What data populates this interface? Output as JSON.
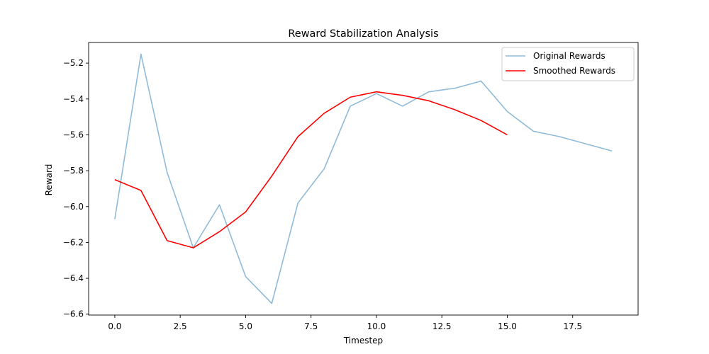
{
  "chart_data": {
    "type": "line",
    "title": "Reward Stabilization Analysis",
    "xlabel": "Timestep",
    "ylabel": "Reward",
    "xlim": [
      -1.0,
      20.0
    ],
    "ylim": [
      -6.605,
      -5.085
    ],
    "x_ticks": [
      0.0,
      2.5,
      5.0,
      7.5,
      10.0,
      12.5,
      15.0,
      17.5
    ],
    "x_tick_labels": [
      "0.0",
      "2.5",
      "5.0",
      "7.5",
      "10.0",
      "12.5",
      "15.0",
      "17.5"
    ],
    "y_ticks": [
      -6.6,
      -6.4,
      -6.2,
      -6.0,
      -5.8,
      -5.6,
      -5.4,
      -5.2
    ],
    "y_tick_labels": [
      "−6.6",
      "−6.4",
      "−6.2",
      "−6.0",
      "−5.8",
      "−5.6",
      "−5.4",
      "−5.2"
    ],
    "grid": false,
    "legend_position": "top-right",
    "series": [
      {
        "name": "Original Rewards",
        "color": "#1f77b4",
        "opacity": 0.5,
        "x": [
          0,
          1,
          2,
          3,
          4,
          5,
          6,
          7,
          8,
          9,
          10,
          11,
          12,
          13,
          14,
          15,
          16,
          17,
          18,
          19
        ],
        "values": [
          -6.07,
          -5.15,
          -5.81,
          -6.23,
          -5.99,
          -6.39,
          -6.54,
          -5.98,
          -5.79,
          -5.44,
          -5.37,
          -5.44,
          -5.36,
          -5.34,
          -5.3,
          -5.47,
          -5.58,
          -5.61,
          -5.65,
          -5.69
        ]
      },
      {
        "name": "Smoothed Rewards",
        "color": "#ff0000",
        "opacity": 1.0,
        "x": [
          0,
          1,
          2,
          3,
          4,
          5,
          6,
          7,
          8,
          9,
          10,
          11,
          12,
          13,
          14,
          15
        ],
        "values": [
          -5.85,
          -5.91,
          -6.19,
          -6.23,
          -6.14,
          -6.03,
          -5.83,
          -5.61,
          -5.48,
          -5.39,
          -5.36,
          -5.38,
          -5.41,
          -5.46,
          -5.52,
          -5.6
        ]
      }
    ]
  }
}
